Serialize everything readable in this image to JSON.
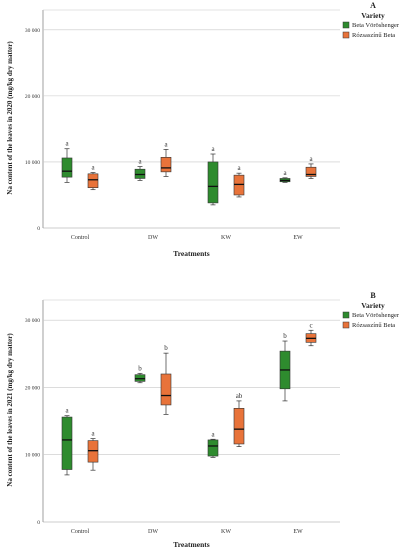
{
  "chart_data": [
    {
      "panel": "A",
      "type": "box",
      "ylabel": "Na content of the leaves in 2020 (mg/kg dry matter)",
      "xlabel": "Treatments",
      "categories": [
        "Control",
        "DW",
        "KW",
        "EW"
      ],
      "ylim": [
        0,
        33000
      ],
      "yticks": [
        0,
        10000,
        20000,
        30000
      ],
      "ytick_labels": [
        "0",
        "10 000",
        "20 000",
        "30 000"
      ],
      "legend": {
        "title": "Variety",
        "position": "right"
      },
      "series": [
        {
          "name": "Beta Vöröshenger",
          "color": "#2e8b2e",
          "boxes": [
            {
              "min": 6900,
              "q1": 7700,
              "median": 8600,
              "q3": 10600,
              "max": 12000,
              "sig": "a"
            },
            {
              "min": 7200,
              "q1": 7500,
              "median": 8100,
              "q3": 8900,
              "max": 9300,
              "sig": "a"
            },
            {
              "min": 3500,
              "q1": 3800,
              "median": 6300,
              "q3": 10000,
              "max": 11200,
              "sig": "a"
            },
            {
              "min": 6900,
              "q1": 7000,
              "median": 7200,
              "q3": 7500,
              "max": 7600,
              "sig": "a"
            }
          ]
        },
        {
          "name": "Rózsaszínű Beta",
          "color": "#e8733a",
          "boxes": [
            {
              "min": 5800,
              "q1": 6100,
              "median": 7300,
              "q3": 8200,
              "max": 8400,
              "sig": "a"
            },
            {
              "min": 7800,
              "q1": 8500,
              "median": 9100,
              "q3": 10700,
              "max": 11900,
              "sig": "a"
            },
            {
              "min": 4700,
              "q1": 5000,
              "median": 6600,
              "q3": 8000,
              "max": 8300,
              "sig": "a"
            },
            {
              "min": 7500,
              "q1": 7800,
              "median": 8100,
              "q3": 9200,
              "max": 9700,
              "sig": "a"
            }
          ]
        }
      ]
    },
    {
      "panel": "B",
      "type": "box",
      "ylabel": "Na content of the leaves in 2021 (mg/kg dry matter)",
      "xlabel": "Treatments",
      "categories": [
        "Control",
        "DW",
        "KW",
        "EW"
      ],
      "ylim": [
        0,
        33000
      ],
      "yticks": [
        0,
        10000,
        20000,
        30000
      ],
      "ytick_labels": [
        "0",
        "10 000",
        "20 000",
        "30 000"
      ],
      "legend": {
        "title": "Variety",
        "position": "right"
      },
      "series": [
        {
          "name": "Beta Vöröshenger",
          "color": "#2e8b2e",
          "boxes": [
            {
              "min": 7000,
              "q1": 7800,
              "median": 12200,
              "q3": 15600,
              "max": 15800,
              "sig": "a"
            },
            {
              "min": 20700,
              "q1": 20900,
              "median": 21300,
              "q3": 21900,
              "max": 22100,
              "sig": "b"
            },
            {
              "min": 9600,
              "q1": 9800,
              "median": 11300,
              "q3": 12200,
              "max": 12300,
              "sig": "a"
            },
            {
              "min": 18000,
              "q1": 19800,
              "median": 22600,
              "q3": 25400,
              "max": 26900,
              "sig": "b"
            }
          ]
        },
        {
          "name": "Rózsaszínű Beta",
          "color": "#e8733a",
          "boxes": [
            {
              "min": 7700,
              "q1": 8900,
              "median": 10600,
              "q3": 12100,
              "max": 12400,
              "sig": "a"
            },
            {
              "min": 16000,
              "q1": 17400,
              "median": 18800,
              "q3": 22000,
              "max": 25100,
              "sig": "b"
            },
            {
              "min": 11200,
              "q1": 11600,
              "median": 13800,
              "q3": 16900,
              "max": 18000,
              "sig": "ab"
            },
            {
              "min": 26200,
              "q1": 26700,
              "median": 27300,
              "q3": 28000,
              "max": 28500,
              "sig": "c"
            }
          ]
        }
      ]
    }
  ]
}
